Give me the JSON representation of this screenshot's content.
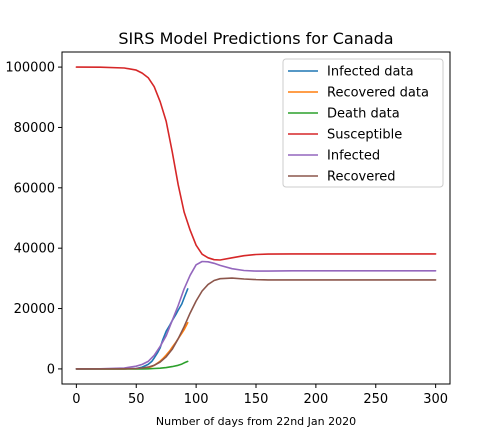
{
  "chart_data": {
    "type": "line",
    "title": "SIRS Model Predictions for Canada",
    "xlabel": "Number of days from 22nd Jan 2020",
    "ylabel": "",
    "xlim": [
      -12,
      312
    ],
    "ylim": [
      -5000,
      105000
    ],
    "xticks": [
      0,
      50,
      100,
      150,
      200,
      250,
      300
    ],
    "yticks": [
      0,
      20000,
      40000,
      60000,
      80000,
      100000
    ],
    "grid": false,
    "legend_position": "top-right",
    "series": [
      {
        "name": "Infected data",
        "color": "#1f77b4",
        "x": [
          0,
          40,
          50,
          55,
          60,
          63,
          65,
          68,
          70,
          72,
          75,
          78,
          80,
          83,
          85,
          88,
          90,
          93
        ],
        "y": [
          0,
          30,
          150,
          600,
          1500,
          2500,
          3600,
          5500,
          7000,
          9500,
          12500,
          14500,
          16000,
          18000,
          19500,
          21500,
          23500,
          26500
        ]
      },
      {
        "name": "Recovered data",
        "color": "#ff7f0e",
        "x": [
          0,
          40,
          50,
          55,
          60,
          63,
          65,
          68,
          70,
          72,
          75,
          78,
          80,
          83,
          85,
          88,
          90,
          93
        ],
        "y": [
          0,
          0,
          30,
          150,
          400,
          800,
          1200,
          2000,
          2600,
          3300,
          4600,
          6000,
          7200,
          8800,
          10000,
          11800,
          13000,
          15300
        ]
      },
      {
        "name": "Death data",
        "color": "#2ca02c",
        "x": [
          0,
          40,
          50,
          55,
          60,
          65,
          70,
          75,
          80,
          85,
          88,
          90,
          93
        ],
        "y": [
          0,
          0,
          5,
          15,
          50,
          120,
          250,
          450,
          750,
          1200,
          1600,
          2000,
          2500
        ]
      },
      {
        "name": "Susceptible",
        "color": "#d62728",
        "x": [
          0,
          20,
          40,
          50,
          55,
          60,
          65,
          70,
          75,
          80,
          85,
          90,
          95,
          100,
          105,
          110,
          115,
          120,
          130,
          140,
          150,
          160,
          180,
          200,
          250,
          300
        ],
        "y": [
          100000,
          99950,
          99700,
          99000,
          98000,
          96500,
          93500,
          88500,
          82000,
          72000,
          61000,
          52000,
          46000,
          41000,
          38000,
          36800,
          36200,
          36100,
          36800,
          37500,
          37900,
          38050,
          38100,
          38100,
          38100,
          38100
        ]
      },
      {
        "name": "Infected",
        "color": "#9467bd",
        "x": [
          0,
          20,
          40,
          50,
          55,
          60,
          65,
          70,
          75,
          80,
          85,
          90,
          95,
          100,
          105,
          110,
          115,
          120,
          130,
          140,
          150,
          160,
          180,
          200,
          250,
          300
        ],
        "y": [
          0,
          50,
          300,
          900,
          1500,
          2500,
          4500,
          7500,
          11000,
          16000,
          21000,
          26500,
          31000,
          34500,
          35600,
          35500,
          35000,
          34300,
          33200,
          32600,
          32400,
          32400,
          32500,
          32500,
          32500,
          32500
        ]
      },
      {
        "name": "Recovered",
        "color": "#8c564b",
        "x": [
          0,
          20,
          40,
          50,
          55,
          60,
          65,
          70,
          75,
          80,
          85,
          90,
          95,
          100,
          105,
          110,
          115,
          120,
          130,
          140,
          150,
          160,
          180,
          200,
          250,
          300
        ],
        "y": [
          0,
          0,
          50,
          150,
          300,
          600,
          1200,
          2300,
          4000,
          6500,
          10000,
          14000,
          18500,
          22500,
          25800,
          28000,
          29300,
          29900,
          30100,
          29800,
          29600,
          29500,
          29500,
          29500,
          29500,
          29500
        ]
      }
    ]
  }
}
